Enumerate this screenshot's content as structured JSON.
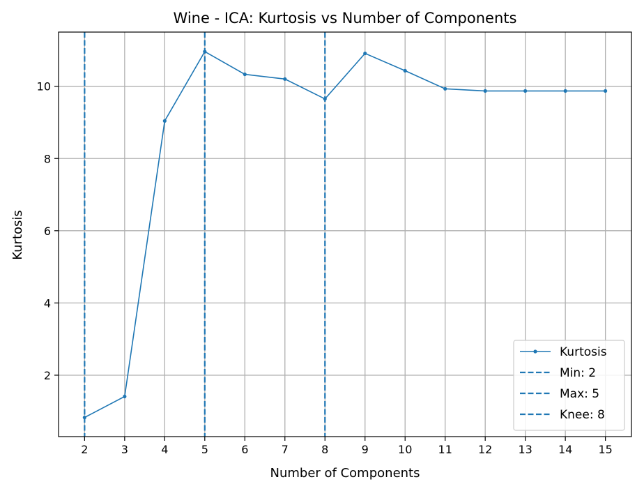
{
  "chart_data": {
    "type": "line",
    "title": "Wine - ICA: Kurtosis vs Number of Components",
    "xlabel": "Number of Components",
    "ylabel": "Kurtosis",
    "x": [
      2,
      3,
      4,
      5,
      6,
      7,
      8,
      9,
      10,
      11,
      12,
      13,
      14,
      15
    ],
    "series": [
      {
        "name": "Kurtosis",
        "values": [
          0.83,
          1.41,
          9.04,
          10.96,
          10.33,
          10.2,
          9.65,
          10.91,
          10.43,
          9.93,
          9.87,
          9.87,
          9.87,
          9.87
        ]
      }
    ],
    "vlines": [
      {
        "label": "Min: 2",
        "x": 2
      },
      {
        "label": "Max: 5",
        "x": 5
      },
      {
        "label": "Knee: 8",
        "x": 8
      }
    ],
    "xlim": [
      1.35,
      15.65
    ],
    "ylim": [
      0.3,
      11.5
    ],
    "yticks": [
      2,
      4,
      6,
      8,
      10
    ],
    "xticks": [
      2,
      3,
      4,
      5,
      6,
      7,
      8,
      9,
      10,
      11,
      12,
      13,
      14,
      15
    ],
    "grid": true,
    "legend_position": "bottom-right",
    "colors": {
      "line": "#1f77b4",
      "grid": "#b0b0b0"
    }
  }
}
